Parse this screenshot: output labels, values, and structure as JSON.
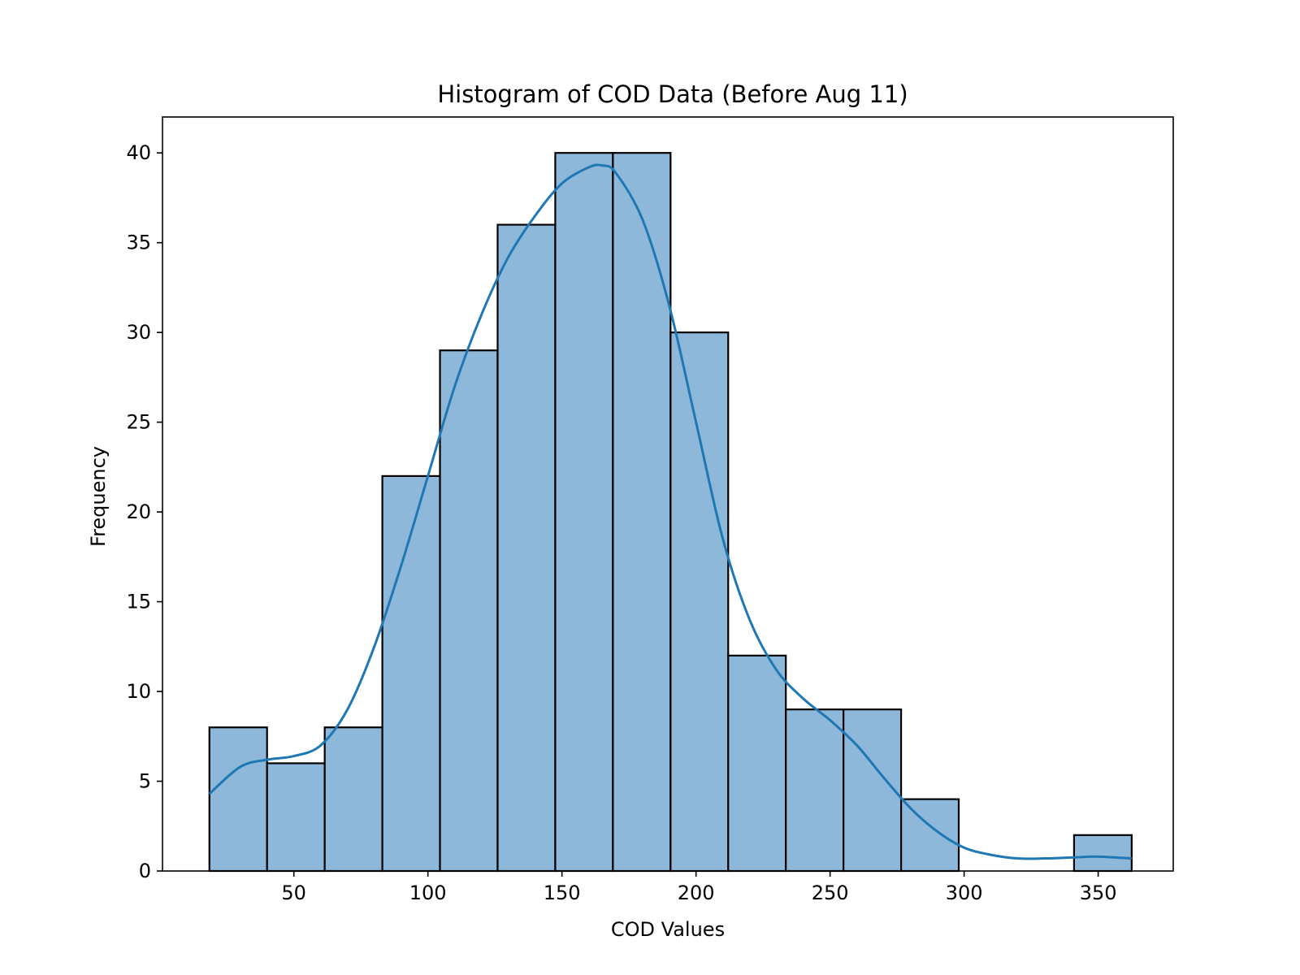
{
  "chart_data": {
    "type": "bar",
    "subtype": "histogram",
    "title": "Histogram of COD Data (Before Aug 11)",
    "xlabel": "COD Values",
    "ylabel": "Frequency",
    "xlim": [
      1,
      378
    ],
    "ylim": [
      0,
      42
    ],
    "x_ticks": [
      50,
      100,
      150,
      200,
      250,
      300,
      350
    ],
    "y_ticks": [
      0,
      5,
      10,
      15,
      20,
      25,
      30,
      35,
      40
    ],
    "bins": [
      {
        "start": 18.5,
        "end": 40.0,
        "count": 8
      },
      {
        "start": 40.0,
        "end": 61.5,
        "count": 6
      },
      {
        "start": 61.5,
        "end": 83.0,
        "count": 8
      },
      {
        "start": 83.0,
        "end": 104.5,
        "count": 22
      },
      {
        "start": 104.5,
        "end": 126.0,
        "count": 29
      },
      {
        "start": 126.0,
        "end": 147.5,
        "count": 36
      },
      {
        "start": 147.5,
        "end": 169.0,
        "count": 40
      },
      {
        "start": 169.0,
        "end": 190.5,
        "count": 40
      },
      {
        "start": 190.5,
        "end": 212.0,
        "count": 30
      },
      {
        "start": 212.0,
        "end": 233.5,
        "count": 12
      },
      {
        "start": 233.5,
        "end": 255.0,
        "count": 9
      },
      {
        "start": 255.0,
        "end": 276.5,
        "count": 9
      },
      {
        "start": 276.5,
        "end": 298.0,
        "count": 4
      },
      {
        "start": 298.0,
        "end": 319.5,
        "count": 0
      },
      {
        "start": 319.5,
        "end": 341.0,
        "count": 0
      },
      {
        "start": 341.0,
        "end": 362.5,
        "count": 2
      }
    ],
    "kde": {
      "x": [
        18.5,
        30,
        40,
        50,
        60,
        70,
        80,
        90,
        100,
        110,
        120,
        130,
        140,
        150,
        160,
        165,
        170,
        180,
        190,
        200,
        210,
        220,
        230,
        240,
        250,
        260,
        270,
        280,
        290,
        300,
        310,
        320,
        330,
        340,
        350,
        362.5
      ],
      "y": [
        4.3,
        5.8,
        6.2,
        6.4,
        7.0,
        9.0,
        12.5,
        17.0,
        22.0,
        27.0,
        31.0,
        34.2,
        36.5,
        38.3,
        39.2,
        39.3,
        38.9,
        36.3,
        31.5,
        25.0,
        18.5,
        14.0,
        11.2,
        9.6,
        8.4,
        7.0,
        5.2,
        3.5,
        2.2,
        1.3,
        0.9,
        0.7,
        0.7,
        0.75,
        0.8,
        0.7
      ]
    },
    "bar_color": "#8db8da",
    "edge_color": "#000000",
    "line_color": "#1f77b4",
    "grid": false,
    "legend": "none"
  }
}
